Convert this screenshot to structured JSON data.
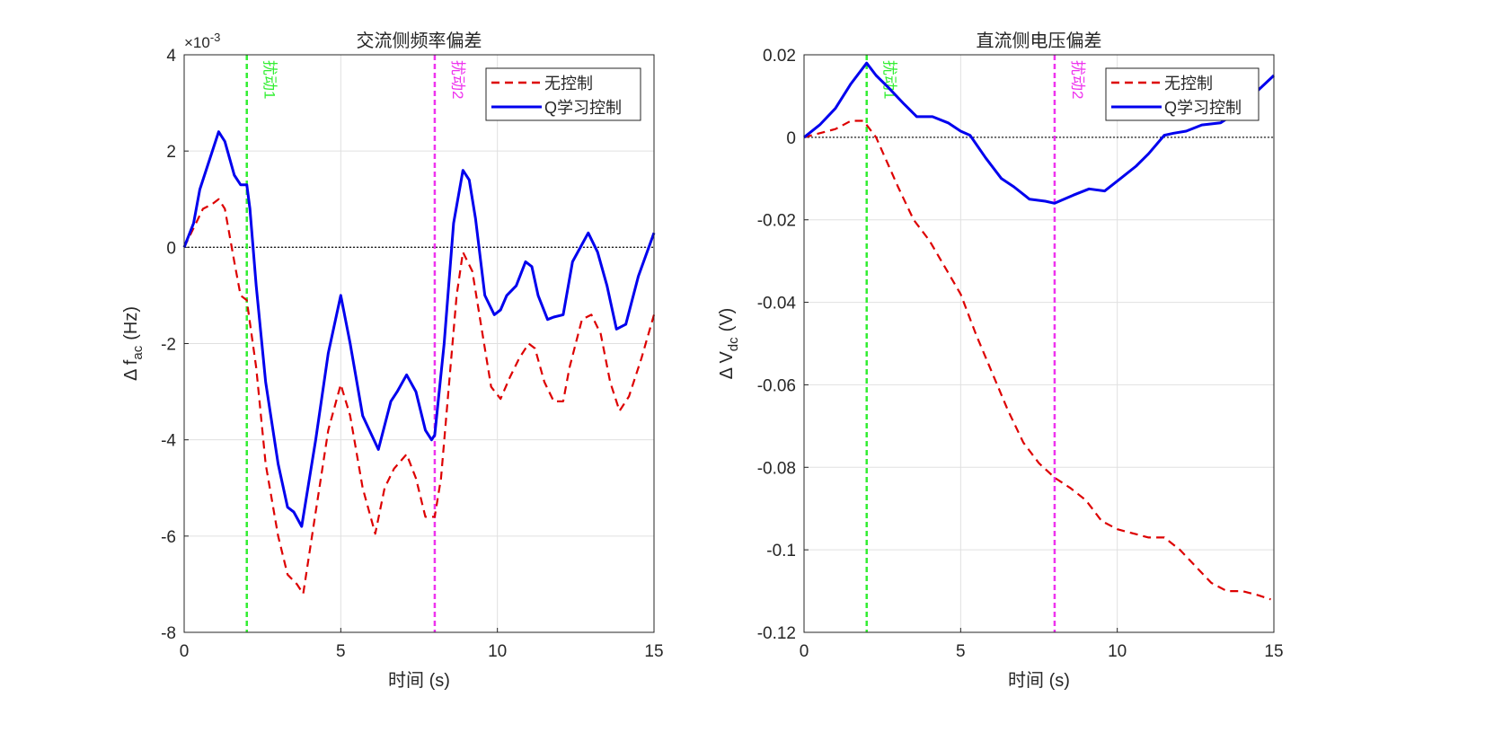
{
  "chart_data": [
    {
      "type": "line",
      "title": "交流侧频率偏差",
      "xlabel": "时间 (s)",
      "ylabel": "Δ f",
      "ylabel_sub": "ac",
      "ylabel_unit": "(Hz)",
      "exponent_label": "×10",
      "exponent_power": "-3",
      "y_scale": 0.001,
      "xlim": [
        0,
        15
      ],
      "ylim": [
        -8,
        4
      ],
      "xticks": [
        0,
        5,
        10,
        15
      ],
      "xtick_labels": [
        "0",
        "5",
        "10",
        "15"
      ],
      "yticks": [
        -8,
        -6,
        -4,
        -2,
        0,
        2,
        4
      ],
      "ytick_labels": [
        "-8",
        "-6",
        "-4",
        "-2",
        "0",
        "2",
        "4"
      ],
      "grid": true,
      "legend_position": "top-right",
      "annotations": [
        {
          "x": 2,
          "label": "扰动1",
          "color": "#33ee33"
        },
        {
          "x": 8,
          "label": "扰动2",
          "color": "#ee33ee"
        }
      ],
      "series": [
        {
          "name": "无控制",
          "color": "#dd0000",
          "style": "dashed",
          "x": [
            0,
            0.3,
            0.6,
            0.9,
            1.1,
            1.3,
            1.6,
            1.8,
            2.0,
            2.3,
            2.6,
            3.0,
            3.3,
            3.6,
            3.8,
            4.2,
            4.6,
            5.0,
            5.3,
            5.7,
            6.1,
            6.4,
            6.7,
            7.1,
            7.4,
            7.7,
            8.0,
            8.2,
            8.5,
            8.7,
            8.9,
            9.2,
            9.5,
            9.8,
            10.1,
            10.4,
            10.7,
            11.0,
            11.2,
            11.5,
            11.8,
            12.1,
            12.3,
            12.7,
            13.0,
            13.3,
            13.6,
            13.9,
            14.2,
            14.6,
            15
          ],
          "y": [
            0,
            0.4,
            0.8,
            0.9,
            1.0,
            0.8,
            -0.3,
            -1.0,
            -1.1,
            -2.5,
            -4.5,
            -6.0,
            -6.8,
            -7.0,
            -7.2,
            -5.5,
            -3.8,
            -2.85,
            -3.5,
            -5.0,
            -5.95,
            -5.0,
            -4.6,
            -4.3,
            -4.8,
            -5.6,
            -5.6,
            -4.8,
            -2.5,
            -1.0,
            -0.1,
            -0.5,
            -1.7,
            -2.9,
            -3.15,
            -2.7,
            -2.3,
            -2.0,
            -2.1,
            -2.8,
            -3.2,
            -3.2,
            -2.5,
            -1.5,
            -1.4,
            -1.8,
            -2.8,
            -3.4,
            -3.1,
            -2.3,
            -1.4
          ]
        },
        {
          "name": "Q学习控制",
          "color": "#0000ee",
          "style": "solid",
          "x": [
            0,
            0.3,
            0.5,
            0.8,
            1.1,
            1.3,
            1.6,
            1.8,
            2.0,
            2.1,
            2.3,
            2.6,
            3.0,
            3.3,
            3.5,
            3.75,
            4.2,
            4.6,
            5.0,
            5.3,
            5.7,
            6.2,
            6.6,
            6.8,
            7.1,
            7.4,
            7.7,
            7.9,
            8.0,
            8.3,
            8.6,
            8.9,
            9.1,
            9.3,
            9.6,
            9.9,
            10.1,
            10.3,
            10.6,
            10.9,
            11.1,
            11.3,
            11.6,
            11.8,
            12.1,
            12.4,
            12.9,
            13.2,
            13.5,
            13.8,
            14.1,
            14.5,
            15
          ],
          "y": [
            0,
            0.5,
            1.2,
            1.8,
            2.4,
            2.2,
            1.5,
            1.3,
            1.3,
            0.8,
            -0.8,
            -2.8,
            -4.5,
            -5.4,
            -5.5,
            -5.8,
            -4.0,
            -2.2,
            -1.0,
            -2.0,
            -3.5,
            -4.2,
            -3.2,
            -3.0,
            -2.65,
            -3.0,
            -3.8,
            -4.0,
            -3.9,
            -2.0,
            0.5,
            1.6,
            1.4,
            0.6,
            -1.0,
            -1.4,
            -1.3,
            -1.0,
            -0.8,
            -0.3,
            -0.4,
            -1.0,
            -1.5,
            -1.45,
            -1.4,
            -0.3,
            0.3,
            -0.1,
            -0.8,
            -1.7,
            -1.6,
            -0.6,
            0.3
          ]
        }
      ]
    },
    {
      "type": "line",
      "title": "直流侧电压偏差",
      "xlabel": "时间 (s)",
      "ylabel": "Δ V",
      "ylabel_sub": "dc",
      "ylabel_unit": "(V)",
      "xlim": [
        0,
        15
      ],
      "ylim": [
        -0.12,
        0.02
      ],
      "xticks": [
        0,
        5,
        10,
        15
      ],
      "xtick_labels": [
        "0",
        "5",
        "10",
        "15"
      ],
      "yticks": [
        -0.12,
        -0.1,
        -0.08,
        -0.06,
        -0.04,
        -0.02,
        0,
        0.02
      ],
      "ytick_labels": [
        "-0.12",
        "-0.1",
        "-0.08",
        "-0.06",
        "-0.04",
        "-0.02",
        "0",
        "0.02"
      ],
      "grid": true,
      "legend_position": "top-right",
      "annotations": [
        {
          "x": 2,
          "label": "扰动1",
          "color": "#33ee33"
        },
        {
          "x": 8,
          "label": "扰动2",
          "color": "#ee33ee"
        }
      ],
      "series": [
        {
          "name": "无控制",
          "color": "#dd0000",
          "style": "dashed",
          "x": [
            0,
            0.5,
            1.0,
            1.5,
            1.9,
            2.3,
            3.0,
            3.5,
            4.0,
            5.0,
            5.5,
            6.0,
            6.5,
            7.0,
            7.5,
            8.0,
            8.5,
            9.0,
            9.5,
            10.0,
            10.5,
            11.0,
            11.5,
            12.0,
            12.5,
            13.0,
            13.5,
            14.0,
            14.5,
            14.9
          ],
          "y": [
            0,
            0.001,
            0.002,
            0.004,
            0.004,
            0.0,
            -0.012,
            -0.02,
            -0.025,
            -0.038,
            -0.048,
            -0.057,
            -0.066,
            -0.074,
            -0.079,
            -0.0825,
            -0.085,
            -0.088,
            -0.093,
            -0.095,
            -0.096,
            -0.097,
            -0.097,
            -0.1,
            -0.104,
            -0.108,
            -0.11,
            -0.11,
            -0.111,
            -0.112
          ]
        },
        {
          "name": "Q学习控制",
          "color": "#0000ee",
          "style": "solid",
          "x": [
            0,
            0.5,
            1.0,
            1.5,
            2.0,
            2.3,
            2.7,
            3.2,
            3.6,
            4.1,
            4.6,
            5.0,
            5.3,
            5.8,
            6.3,
            6.7,
            7.2,
            7.7,
            8.0,
            8.6,
            9.1,
            9.6,
            10.1,
            10.6,
            11.0,
            11.5,
            11.8,
            12.2,
            12.7,
            13.3,
            13.8,
            14.3,
            15
          ],
          "y": [
            0,
            0.003,
            0.007,
            0.013,
            0.018,
            0.015,
            0.012,
            0.008,
            0.005,
            0.005,
            0.0035,
            0.0015,
            0.0005,
            -0.005,
            -0.01,
            -0.012,
            -0.015,
            -0.0155,
            -0.016,
            -0.014,
            -0.0125,
            -0.013,
            -0.01,
            -0.007,
            -0.004,
            0.0005,
            0.001,
            0.0015,
            0.003,
            0.0035,
            0.006,
            0.01,
            0.015
          ]
        }
      ]
    }
  ]
}
